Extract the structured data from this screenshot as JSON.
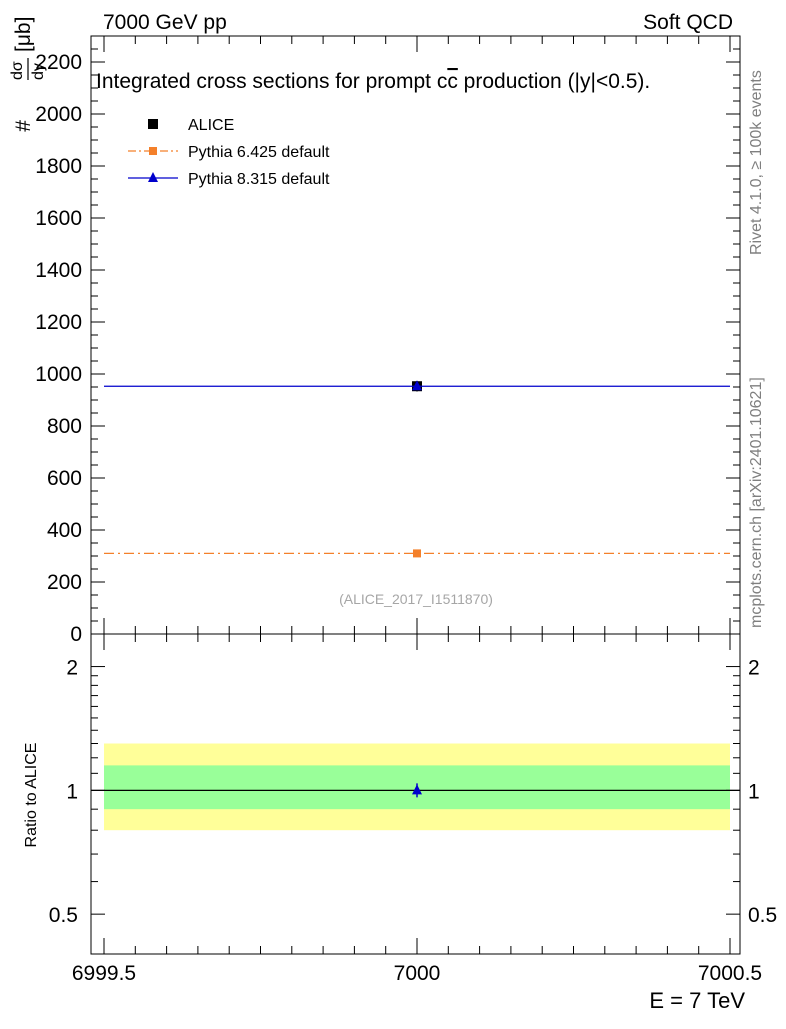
{
  "header": {
    "left": "7000 GeV pp",
    "right": "Soft QCD"
  },
  "side_labels": {
    "rivet": "Rivet 4.1.0, ≥ 100k events",
    "mcplots": "mcplots.cern.ch [arXiv:2401.10621]"
  },
  "chart_data": [
    {
      "type": "scatter",
      "title": "Integrated cross sections for prompt c",
      "title_bar": "c",
      "title_suffix": " production (|y|<0.5).",
      "ylabel_num": "dσ",
      "ylabel_den": "dy",
      "ylabel_prefix": "#",
      "ylabel_unit": "[μb]",
      "watermark": "(ALICE_2017_I1511870)",
      "xlim": [
        6999.5,
        7000.5
      ],
      "ylim": [
        0,
        2300
      ],
      "yticks": [
        0,
        200,
        400,
        600,
        800,
        1000,
        1200,
        1400,
        1600,
        1800,
        2000,
        2200
      ],
      "ytick_labels": [
        "0",
        "200",
        "400",
        "600",
        "800",
        "1000",
        "1200",
        "1400",
        "1600",
        "1800",
        "2000",
        "2200"
      ],
      "legend_position": "top-left",
      "series": [
        {
          "name": "ALICE",
          "x": [
            7000
          ],
          "y": [
            953
          ],
          "yerr": [
            20
          ],
          "color": "#000000",
          "marker": "square",
          "line": "none"
        },
        {
          "name": "Pythia 6.425 default",
          "x": [
            7000
          ],
          "y": [
            310
          ],
          "color": "#f4802a",
          "marker": "square",
          "line": "dashdot"
        },
        {
          "name": "Pythia 8.315 default",
          "x": [
            7000
          ],
          "y": [
            953
          ],
          "color": "#0000cc",
          "marker": "triangle",
          "line": "solid"
        }
      ]
    },
    {
      "type": "scatter",
      "ylabel": "Ratio to ALICE",
      "xlabel": "E = 7 TeV",
      "xlim": [
        6999.5,
        7000.5
      ],
      "xticks": [
        6999.5,
        7000,
        7000.5
      ],
      "xtick_labels": [
        "6999.5",
        "7000",
        "7000.5"
      ],
      "ylim": [
        0.4,
        2.4
      ],
      "yscale": "log",
      "yticks": [
        0.5,
        1,
        2
      ],
      "ytick_labels": [
        "0.5",
        "1",
        "2"
      ],
      "bands": [
        {
          "name": "outer",
          "low": 0.8,
          "high": 1.3,
          "color": "#ffff99"
        },
        {
          "name": "inner",
          "low": 0.9,
          "high": 1.15,
          "color": "#99ff99"
        }
      ],
      "series": [
        {
          "name": "Pythia 8.315 default",
          "x": [
            7000
          ],
          "y": [
            1.0
          ],
          "color": "#0000cc",
          "marker": "triangle"
        }
      ]
    }
  ]
}
